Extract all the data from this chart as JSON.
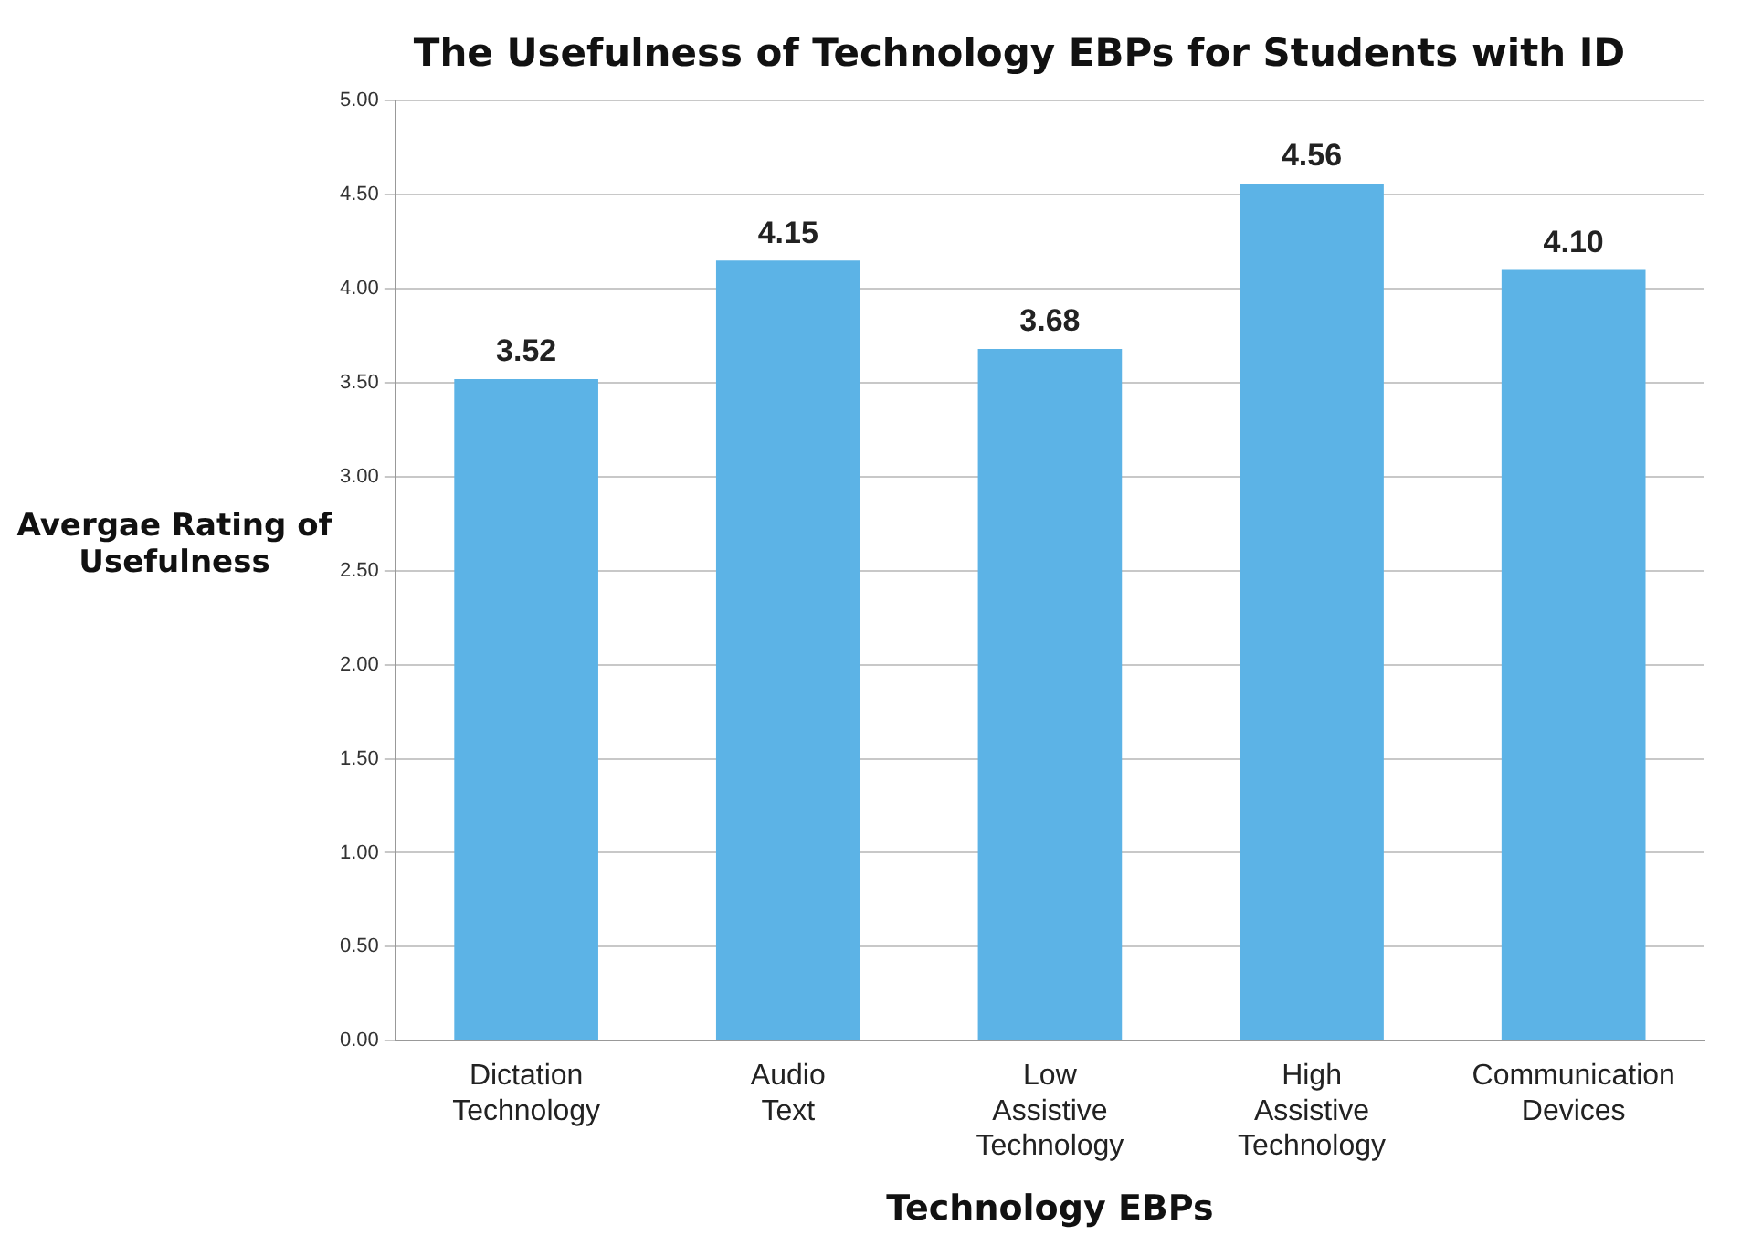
{
  "chart_data": {
    "type": "bar",
    "title": "The Usefulness of Technology EBPs for Students with ID",
    "xlabel": "Technology EBPs",
    "ylabel": "Avergae Rating of Usefulness",
    "categories": [
      "Dictation Technology",
      "Audio Text",
      "Low Assistive Technology",
      "High Assistive Technology",
      "Communication Devices"
    ],
    "values": [
      3.52,
      4.15,
      3.68,
      4.56,
      4.1
    ],
    "value_labels": [
      "3.52",
      "4.15",
      "3.68",
      "4.56",
      "4.10"
    ],
    "color": "#5cb3e6",
    "ylim": [
      0,
      5
    ],
    "yticks": [
      {
        "value": 0,
        "label": "0.00"
      },
      {
        "value": 0.5,
        "label": "0.50"
      },
      {
        "value": 1,
        "label": "1.00"
      },
      {
        "value": 1.5,
        "label": "1.50"
      },
      {
        "value": 2,
        "label": "2.00"
      },
      {
        "value": 2.5,
        "label": "2.50"
      },
      {
        "value": 3,
        "label": "3.00"
      },
      {
        "value": 3.5,
        "label": "3.50"
      },
      {
        "value": 4,
        "label": "4.00"
      },
      {
        "value": 4.5,
        "label": "4.50"
      },
      {
        "value": 5,
        "label": "5.00"
      }
    ],
    "grid": "y"
  }
}
